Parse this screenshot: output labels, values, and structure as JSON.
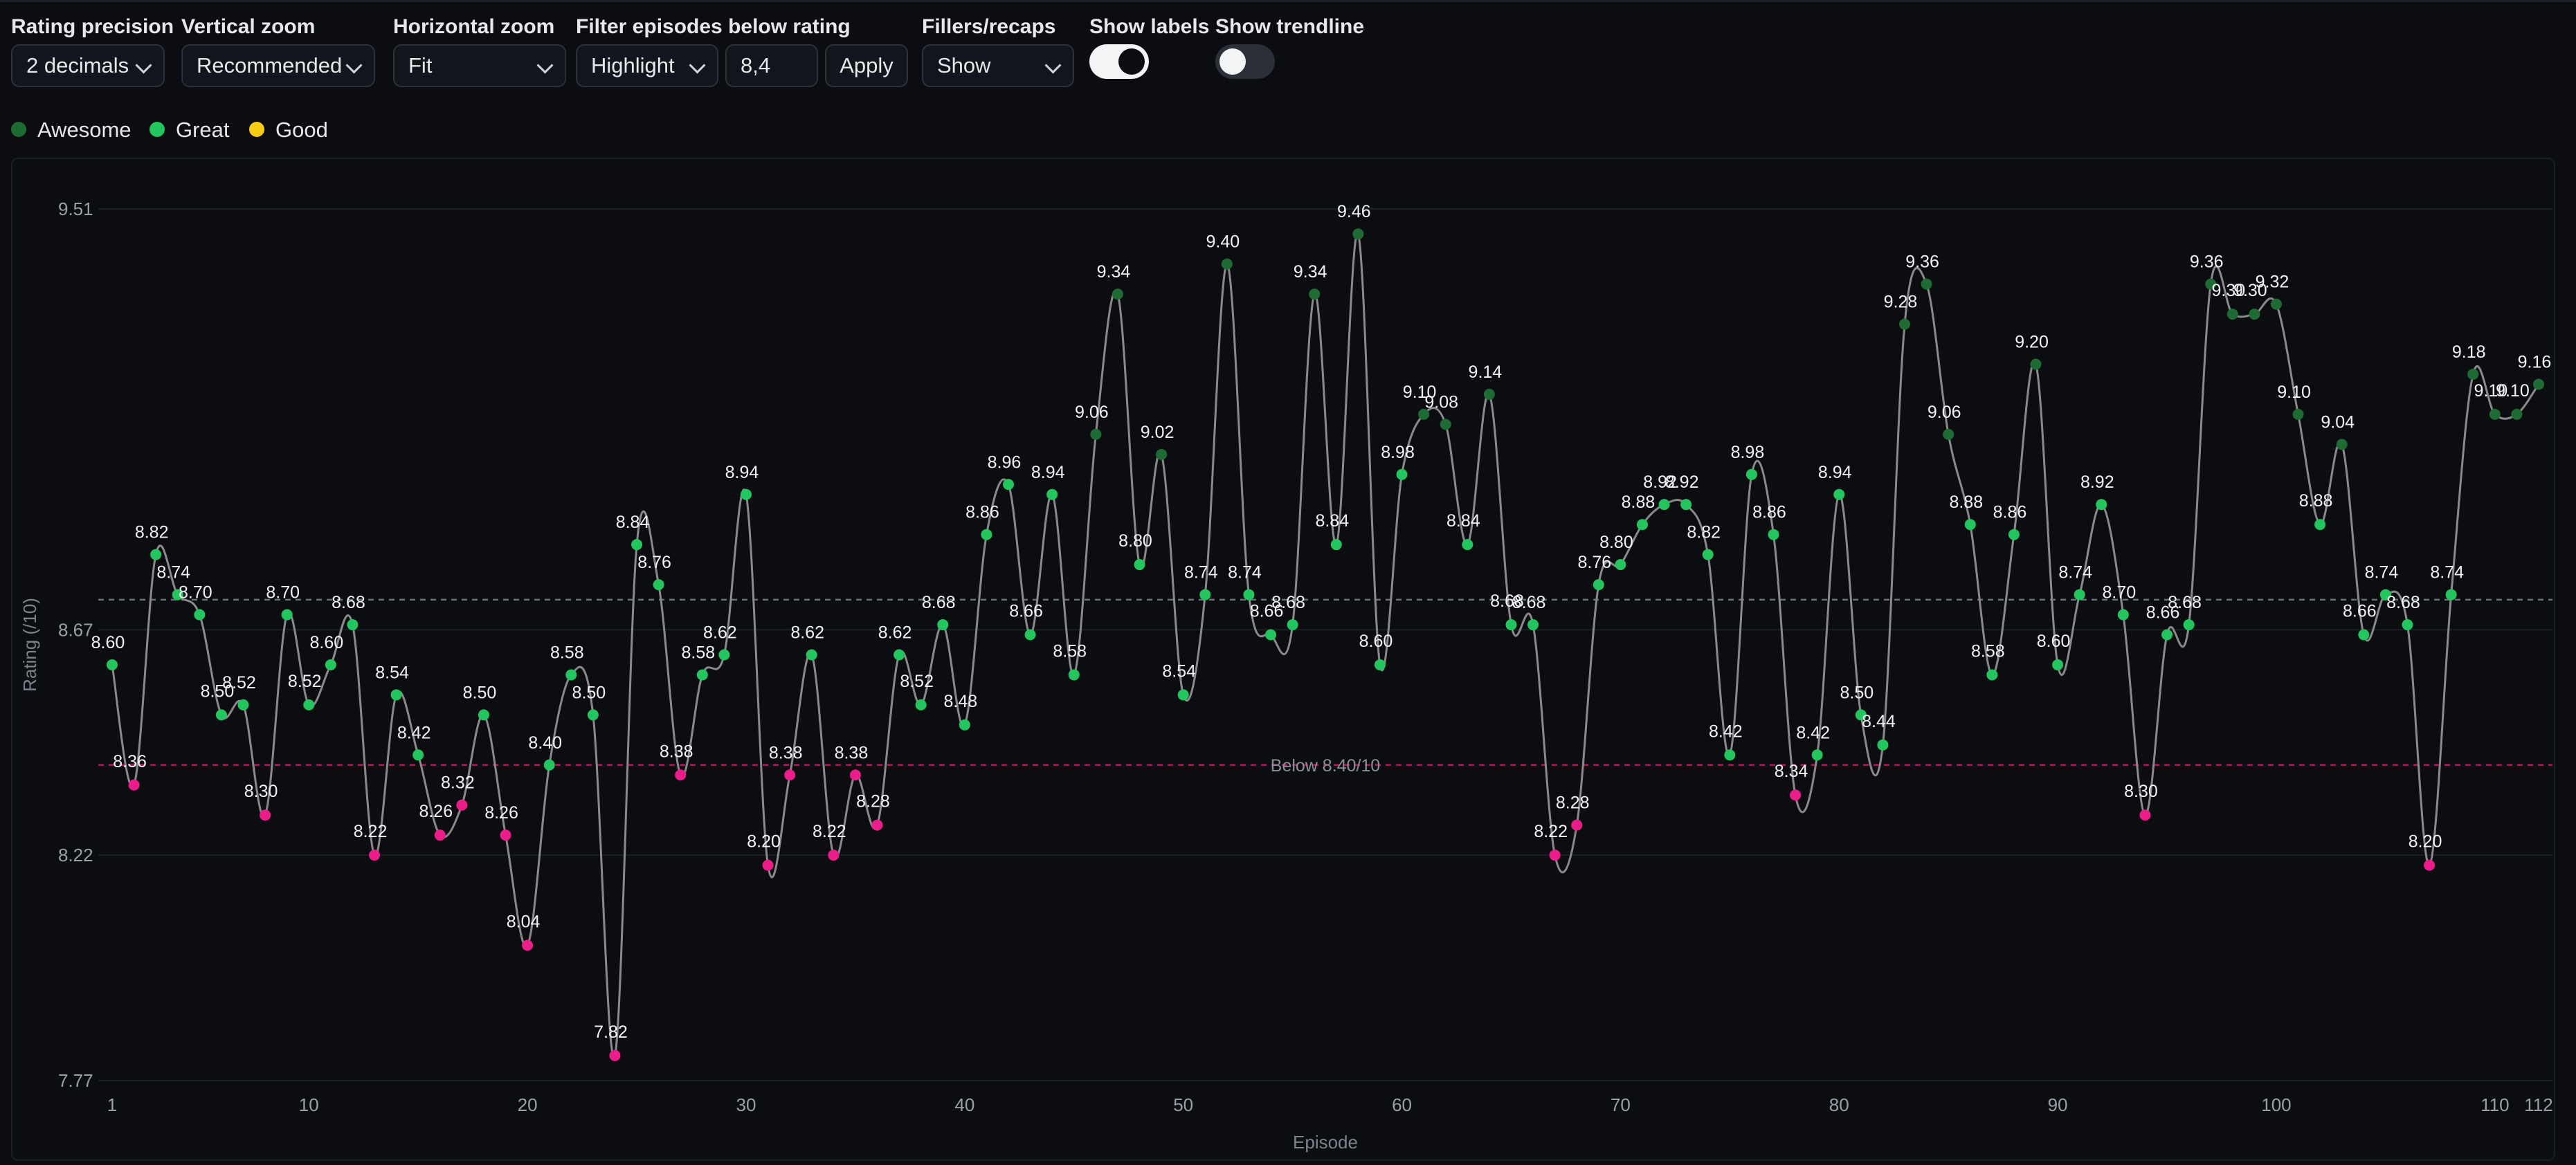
{
  "controls": {
    "rating_precision": {
      "label": "Rating precision",
      "value": "2 decimals"
    },
    "vertical_zoom": {
      "label": "Vertical zoom",
      "value": "Recommended"
    },
    "horizontal_zoom": {
      "label": "Horizontal zoom",
      "value": "Fit"
    },
    "filter": {
      "label": "Filter episodes below rating",
      "mode": "Highlight",
      "threshold": "8,4",
      "apply_label": "Apply"
    },
    "fillers": {
      "label": "Fillers/recaps",
      "value": "Show"
    },
    "show_labels": {
      "label": "Show labels",
      "on": true
    },
    "show_trendline": {
      "label": "Show trendline",
      "on": false
    }
  },
  "legend": [
    {
      "name": "Awesome",
      "color": "#1e6b34"
    },
    {
      "name": "Great",
      "color": "#22c55e"
    },
    {
      "name": "Good",
      "color": "#facc15"
    }
  ],
  "colors": {
    "awesome": "#1e6b34",
    "great": "#22c55e",
    "below": "#ec1c8a",
    "line": "#8a8a8a",
    "threshold": "#b3155f",
    "average": "#6b7079"
  },
  "chart_data": {
    "type": "line",
    "xlabel": "Episode",
    "ylabel": "Rating (/10)",
    "ylim": [
      7.77,
      9.51
    ],
    "yticks": [
      "9.51",
      "8.67",
      "8.22",
      "7.77"
    ],
    "xticks": [
      "1",
      "10",
      "20",
      "30",
      "40",
      "50",
      "60",
      "70",
      "80",
      "90",
      "100",
      "110",
      "112"
    ],
    "xlim": [
      1,
      112
    ],
    "average_line": 8.73,
    "threshold": 8.4,
    "threshold_label": "Below 8.40/10",
    "awesome_min": 9.0,
    "label_precision": 2,
    "series": [
      {
        "values": [
          8.6,
          8.36,
          8.82,
          8.74,
          8.7,
          8.5,
          8.52,
          8.3,
          8.7,
          8.52,
          8.6,
          8.68,
          8.22,
          8.54,
          8.42,
          8.26,
          8.32,
          8.5,
          8.26,
          8.04,
          8.4,
          8.58,
          8.5,
          7.82,
          8.84,
          8.76,
          8.38,
          8.58,
          8.62,
          8.94,
          8.2,
          8.38,
          8.62,
          8.22,
          8.38,
          8.28,
          8.62,
          8.52,
          8.68,
          8.48,
          8.86,
          8.96,
          8.66,
          8.94,
          8.58,
          9.06,
          9.34,
          8.8,
          9.02,
          8.54,
          8.74,
          9.4,
          8.74,
          8.66,
          8.68,
          9.34,
          8.84,
          9.46,
          8.6,
          8.98,
          9.1,
          9.08,
          8.84,
          9.14,
          8.68,
          8.68,
          8.22,
          8.28,
          8.76,
          8.8,
          8.88,
          8.92,
          8.92,
          8.82,
          8.42,
          8.98,
          8.86,
          8.34,
          8.42,
          8.94,
          8.5,
          8.44,
          9.28,
          9.36,
          9.06,
          8.88,
          8.58,
          8.86,
          9.2,
          8.6,
          8.74,
          8.92,
          8.7,
          8.3,
          8.66,
          8.68,
          9.36,
          9.3,
          9.3,
          9.32,
          9.1,
          8.88,
          9.04,
          8.66,
          8.74,
          8.68,
          8.2,
          8.74,
          9.18,
          9.1,
          9.1,
          9.16
        ]
      }
    ]
  }
}
